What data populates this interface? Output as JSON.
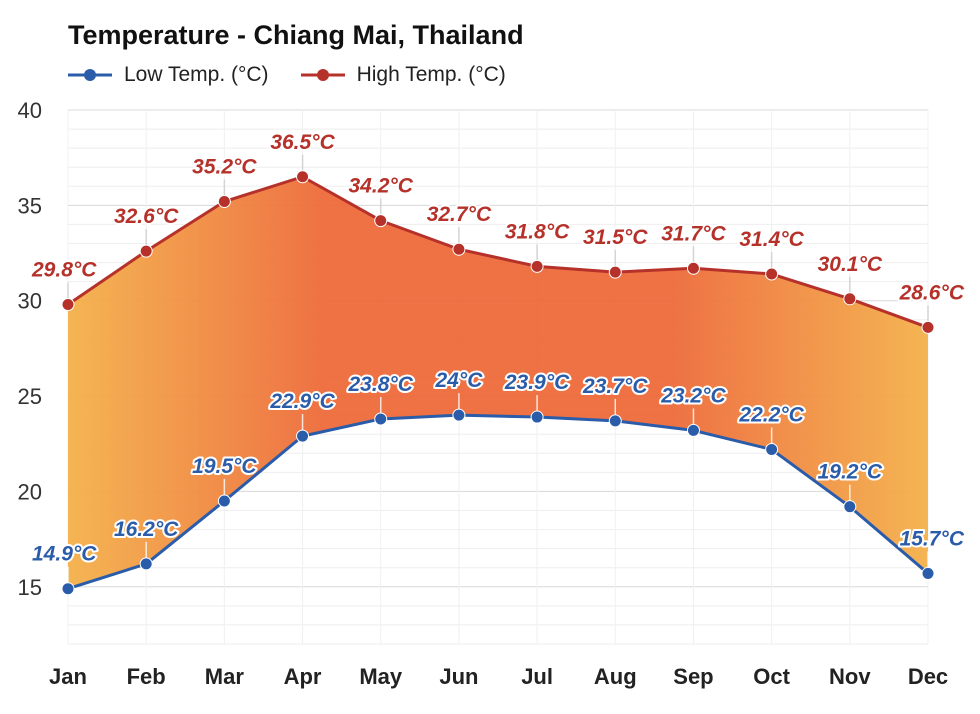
{
  "chart_data": {
    "type": "line",
    "title": "Temperature - Chiang Mai, Thailand",
    "categories": [
      "Jan",
      "Feb",
      "Mar",
      "Apr",
      "May",
      "Jun",
      "Jul",
      "Aug",
      "Sep",
      "Oct",
      "Nov",
      "Dec"
    ],
    "series": [
      {
        "name": "Low Temp. (°C)",
        "color": "#2a5caa",
        "values": [
          14.9,
          16.2,
          19.5,
          22.9,
          23.8,
          24,
          23.9,
          23.7,
          23.2,
          22.2,
          19.2,
          15.7
        ],
        "labels": [
          "14.9°C",
          "16.2°C",
          "19.5°C",
          "22.9°C",
          "23.8°C",
          "24°C",
          "23.9°C",
          "23.7°C",
          "23.2°C",
          "22.2°C",
          "19.2°C",
          "15.7°C"
        ]
      },
      {
        "name": "High Temp. (°C)",
        "color": "#b5312a",
        "values": [
          29.8,
          32.6,
          35.2,
          36.5,
          34.2,
          32.7,
          31.8,
          31.5,
          31.7,
          31.4,
          30.1,
          28.6
        ],
        "labels": [
          "29.8°C",
          "32.6°C",
          "35.2°C",
          "36.5°C",
          "34.2°C",
          "32.7°C",
          "31.8°C",
          "31.5°C",
          "31.7°C",
          "31.4°C",
          "30.1°C",
          "28.6°C"
        ]
      }
    ],
    "yticks": [
      "15",
      "20",
      "25",
      "30",
      "35",
      "40"
    ],
    "ylim": [
      12,
      40
    ],
    "grid": true,
    "legend_position": "top-left",
    "fill_between": true,
    "fill_colors": [
      "#f4b14a",
      "#ed6a3a"
    ]
  }
}
